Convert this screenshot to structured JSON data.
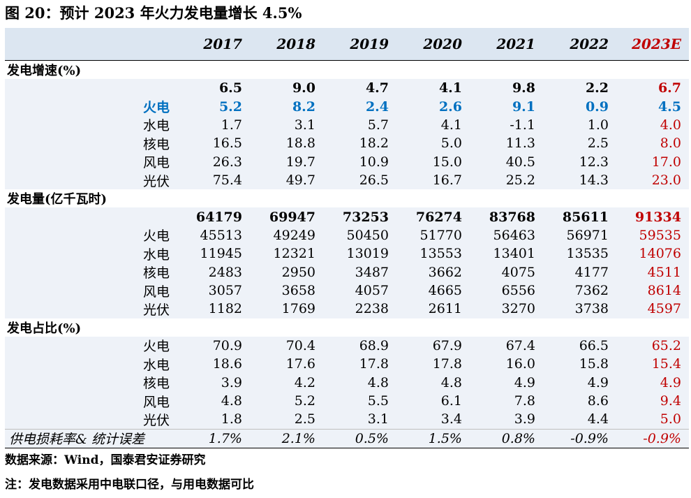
{
  "title": "图 20：预计 2023 年火力发电量增长 4.5%",
  "years": [
    "2017",
    "2018",
    "2019",
    "2020",
    "2021",
    "2022",
    "2023E"
  ],
  "sections": [
    {
      "label": "发电增速(%)",
      "rows": [
        {
          "label": "",
          "values": [
            "6.5",
            "9.0",
            "4.7",
            "4.1",
            "9.8",
            "2.2",
            "6.7"
          ]
        },
        {
          "label": "火电",
          "values": [
            "5.2",
            "8.2",
            "2.4",
            "2.6",
            "9.1",
            "0.9",
            "4.5"
          ]
        },
        {
          "label": "水电",
          "values": [
            "1.7",
            "3.1",
            "5.7",
            "4.1",
            "-1.1",
            "1.0",
            "4.0"
          ]
        },
        {
          "label": "核电",
          "values": [
            "16.5",
            "18.8",
            "18.2",
            "5.0",
            "11.3",
            "2.5",
            "8.0"
          ]
        },
        {
          "label": "风电",
          "values": [
            "26.3",
            "19.7",
            "10.9",
            "15.0",
            "40.5",
            "12.3",
            "17.0"
          ]
        },
        {
          "label": "光伏",
          "values": [
            "75.4",
            "49.7",
            "26.5",
            "16.7",
            "25.2",
            "14.3",
            "23.0"
          ]
        }
      ]
    },
    {
      "label": "发电量(亿千瓦时)",
      "rows": [
        {
          "label": "",
          "values": [
            "64179",
            "69947",
            "73253",
            "76274",
            "83768",
            "85611",
            "91334"
          ]
        },
        {
          "label": "火电",
          "values": [
            "45513",
            "49249",
            "50450",
            "51770",
            "56463",
            "56971",
            "59535"
          ]
        },
        {
          "label": "水电",
          "values": [
            "11945",
            "12321",
            "13019",
            "13553",
            "13401",
            "13535",
            "14076"
          ]
        },
        {
          "label": "核电",
          "values": [
            "2483",
            "2950",
            "3487",
            "3662",
            "4075",
            "4177",
            "4511"
          ]
        },
        {
          "label": "风电",
          "values": [
            "3057",
            "3658",
            "4057",
            "4665",
            "6556",
            "7362",
            "8614"
          ]
        },
        {
          "label": "光伏",
          "values": [
            "1182",
            "1769",
            "2238",
            "2611",
            "3270",
            "3738",
            "4597"
          ]
        }
      ]
    },
    {
      "label": "发电占比(%)",
      "rows": [
        {
          "label": "火电",
          "values": [
            "70.9",
            "70.4",
            "68.9",
            "67.9",
            "67.4",
            "66.5",
            "65.2"
          ]
        },
        {
          "label": "水电",
          "values": [
            "18.6",
            "17.6",
            "17.8",
            "17.8",
            "16.0",
            "15.8",
            "15.4"
          ]
        },
        {
          "label": "核电",
          "values": [
            "3.9",
            "4.2",
            "4.8",
            "4.8",
            "4.9",
            "4.9",
            "4.9"
          ]
        },
        {
          "label": "风电",
          "values": [
            "4.8",
            "5.2",
            "5.5",
            "6.1",
            "7.8",
            "8.6",
            "9.4"
          ]
        },
        {
          "label": "光伏",
          "values": [
            "1.8",
            "2.5",
            "3.1",
            "3.4",
            "3.9",
            "4.4",
            "5.0"
          ]
        }
      ]
    }
  ],
  "loss_row": {
    "label": "供电损耗率& 统计误差",
    "values": [
      "1.7%",
      "2.1%",
      "0.5%",
      "1.5%",
      "0.8%",
      "-0.9%",
      "-0.9%"
    ]
  },
  "source": "数据来源：Wind，国泰君安证券研究",
  "note": "注：发电数据采用中电联口径，与用电数据可比",
  "colors": {
    "header_bg": "#dce6f1",
    "band_bg": "#eef2f8",
    "forecast": "#c00000",
    "thermal": "#0070c0"
  }
}
